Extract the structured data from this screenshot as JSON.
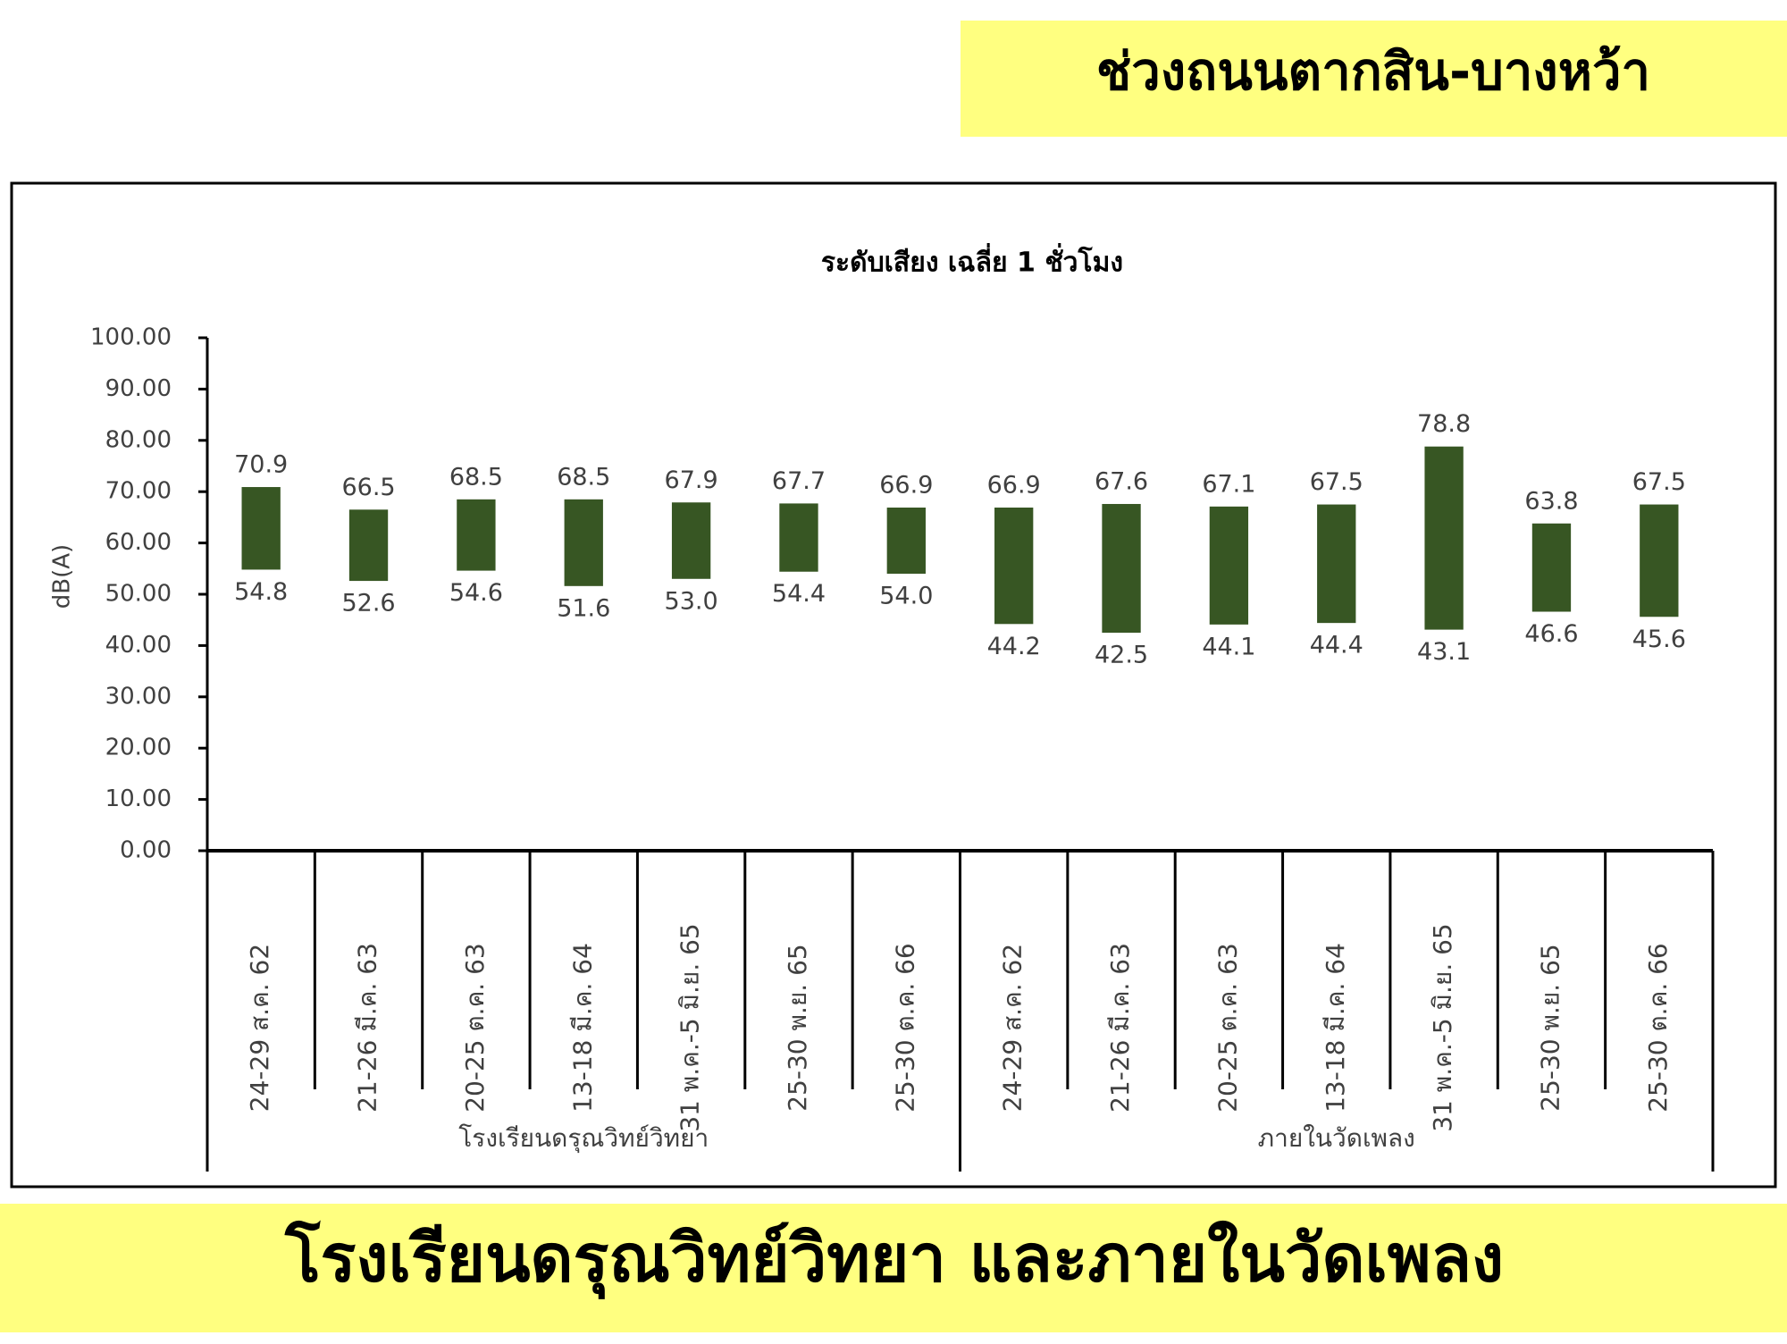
{
  "header": {
    "title": "ช่วงถนนตากสิน-บางหว้า"
  },
  "footer": {
    "title": "โรงเรียนดรุณวิทย์วิทยา และภายในวัดเพลง"
  },
  "chart_data": {
    "type": "floating_bar",
    "title": "ระดับเสียง เฉลี่ย 1 ชั่วโมง",
    "y_label": "dB(A)",
    "color": "#375623",
    "groups": [
      {
        "name": "โรงเรียนดรุณวิทย์วิทยา",
        "categories": [
          "24-29 ส.ค. 62",
          "21-26 มี.ค. 63",
          "20-25 ต.ค. 63",
          "13-18 มี.ค. 64",
          "31 พ.ค.-5 มิ.ย. 65",
          "25-30 พ.ย. 65",
          "25-30 ต.ค. 66"
        ]
      },
      {
        "name": "ภายในวัดเพลง",
        "categories": [
          "24-29 ส.ค. 62",
          "21-26 มี.ค. 63",
          "20-25 ต.ค. 63",
          "13-18 มี.ค. 64",
          "31 พ.ค.-5 มิ.ย. 65",
          "25-30 พ.ย. 65",
          "25-30 ต.ค. 66"
        ]
      }
    ],
    "high": [
      70.9,
      66.5,
      68.5,
      68.5,
      67.9,
      67.7,
      66.9,
      66.9,
      67.6,
      67.1,
      67.5,
      78.8,
      63.8,
      67.5
    ],
    "high_labels": [
      "70.9",
      "66.5",
      "68.5",
      "68.5",
      "67.9",
      "67.7",
      "66.9",
      "66.9",
      "67.6",
      "67.1",
      "67.5",
      "78.8",
      "63.8",
      "67.5"
    ],
    "low": [
      54.8,
      52.6,
      54.6,
      51.6,
      53.0,
      54.4,
      54.0,
      44.2,
      42.5,
      44.1,
      44.4,
      43.1,
      46.6,
      45.6
    ],
    "low_labels": [
      "54.8",
      "52.6",
      "54.6",
      "51.6",
      "53.0",
      "54.4",
      "54.0",
      "44.2",
      "42.5",
      "44.1",
      "44.4",
      "43.1",
      "46.6",
      "45.6"
    ],
    "ylim": [
      0,
      100
    ],
    "yticks": [
      {
        "value": 0,
        "label": "0.00"
      },
      {
        "value": 10,
        "label": "10.00"
      },
      {
        "value": 20,
        "label": "20.00"
      },
      {
        "value": 30,
        "label": "30.00"
      },
      {
        "value": 40,
        "label": "40.00"
      },
      {
        "value": 50,
        "label": "50.00"
      },
      {
        "value": 60,
        "label": "60.00"
      },
      {
        "value": 70,
        "label": "70.00"
      },
      {
        "value": 80,
        "label": "80.00"
      },
      {
        "value": 90,
        "label": "90.00"
      },
      {
        "value": 100,
        "label": "100.00"
      }
    ]
  }
}
